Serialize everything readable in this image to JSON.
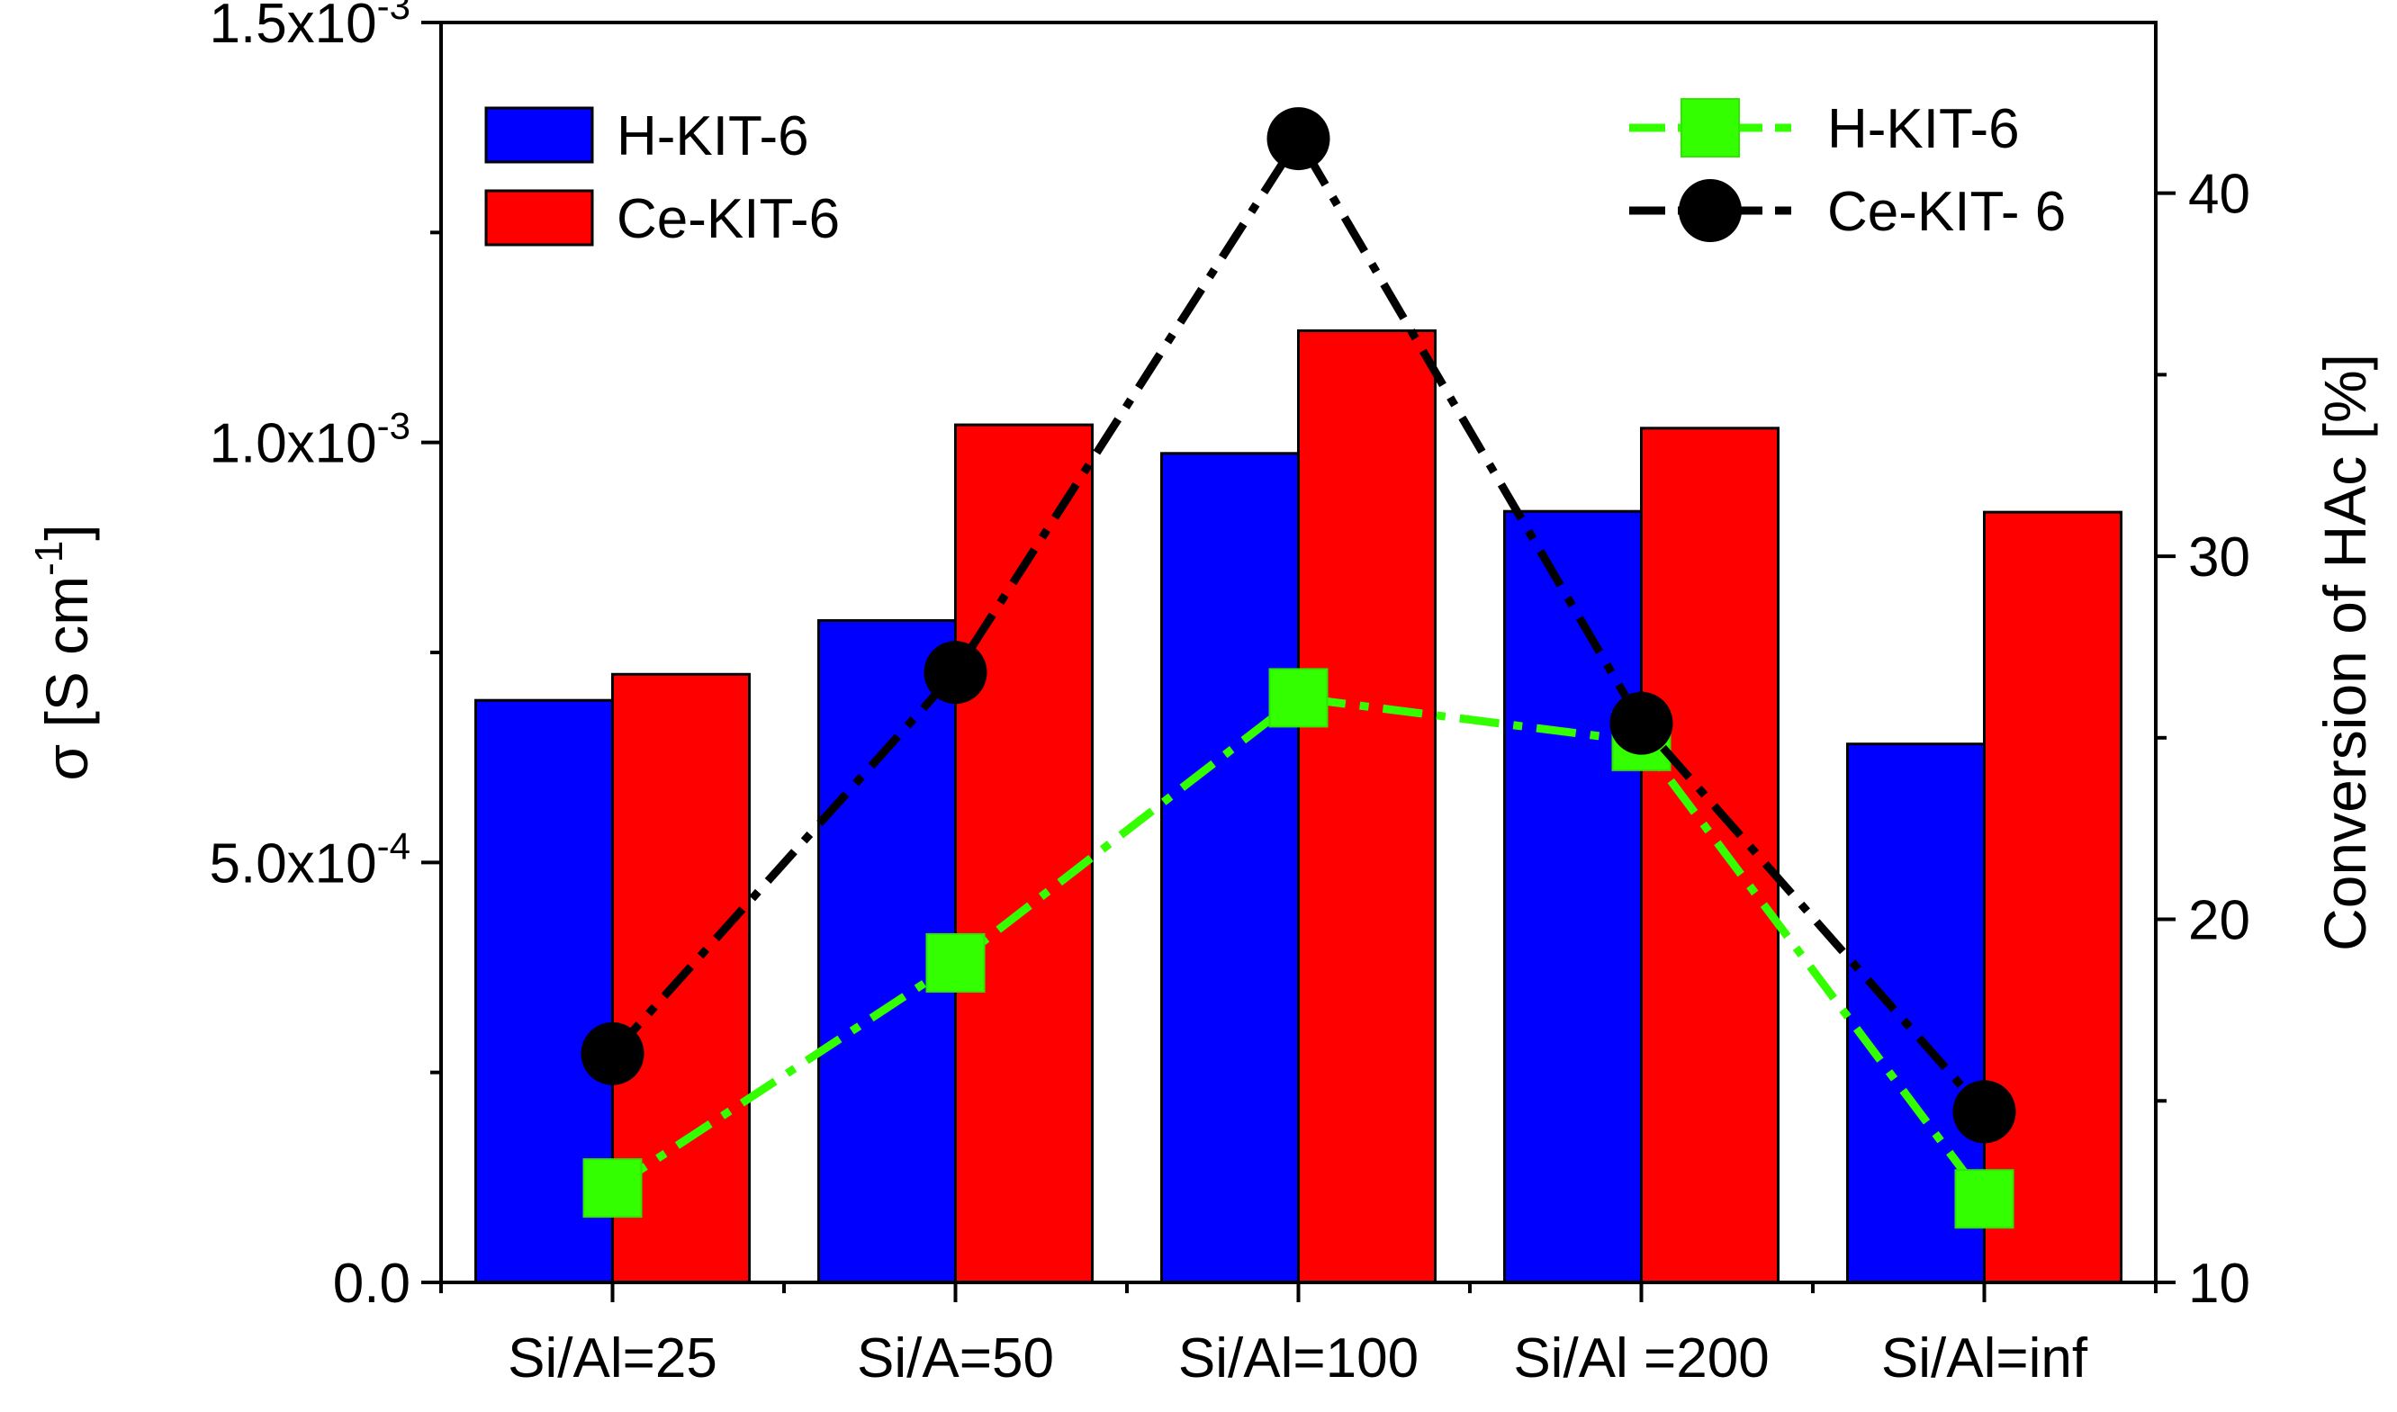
{
  "chart_data": {
    "type": "bar",
    "categories": [
      "Si/Al=25",
      "Si/A=50",
      "Si/Al=100",
      "Si/Al =200",
      "Si/Al=inf"
    ],
    "ylabel": "σ [S cm",
    "ylabel_sup": "-1",
    "ylabel_close": "]",
    "y2label": "Conversion of HAc [%]",
    "ylim": [
      0,
      0.0015
    ],
    "y2lim": [
      10,
      44.7
    ],
    "y_ticks": [
      {
        "value": 0,
        "mantissa": "0.0",
        "exp": ""
      },
      {
        "value": 0.0005,
        "mantissa": "5.0x10",
        "exp": "-4"
      },
      {
        "value": 0.001,
        "mantissa": "1.0x10",
        "exp": "-3"
      },
      {
        "value": 0.0015,
        "mantissa": "1.5x10",
        "exp": "-3"
      }
    ],
    "y2_ticks": [
      {
        "value": 10,
        "label": "10"
      },
      {
        "value": 20,
        "label": "20"
      },
      {
        "value": 30,
        "label": "30"
      },
      {
        "value": 40,
        "label": "40"
      }
    ],
    "bar_series": [
      {
        "name": "H-KIT-6",
        "color": "#0000ff",
        "values": [
          0.000693,
          0.000788,
          0.000987,
          0.000918,
          0.000641
        ]
      },
      {
        "name": "Ce-KIT-6",
        "color": "#ff0000",
        "values": [
          0.000724,
          0.001021,
          0.001133,
          0.001017,
          0.000917
        ]
      }
    ],
    "line_series": [
      {
        "name": "H-KIT-6",
        "color": "#33ff00",
        "marker": "square",
        "values": [
          12.6,
          18.8,
          26.1,
          24.9,
          12.3
        ]
      },
      {
        "name": "Ce-KIT- 6",
        "color": "#000000",
        "marker": "circle",
        "values": [
          16.3,
          26.8,
          41.5,
          25.4,
          14.7
        ]
      }
    ]
  }
}
